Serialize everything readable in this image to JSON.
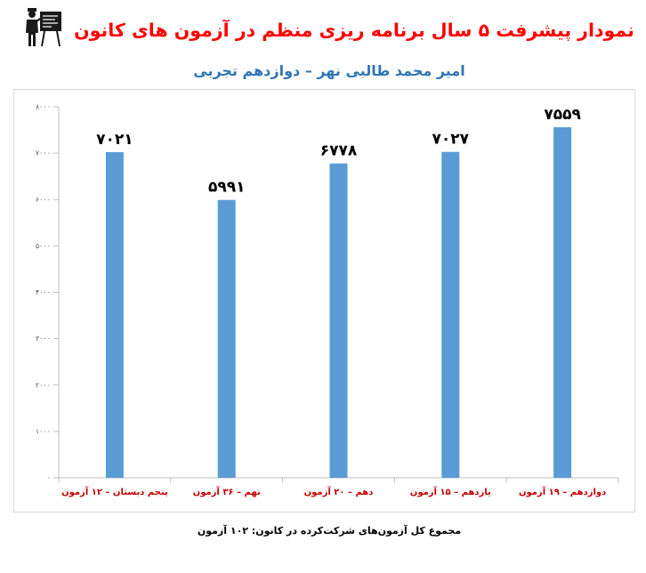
{
  "logo": {
    "icon": "teacher-at-board-logo-icon"
  },
  "colors": {
    "title": "#FF0000",
    "subtitle": "#2E75B6",
    "bar": "#5B9BD5",
    "category_label": "#C00000",
    "data_label": "#000000",
    "axis": "#BFBFBF",
    "tick_label": "#595959",
    "note": "#000000"
  },
  "chart_data": {
    "type": "bar",
    "title": "نمودار پیشرفت ۵ سال برنامه ریزی منظم در آزمون های کانون",
    "subtitle": "امیر محمد طالبی نهر – دوازدهم تجربی",
    "categories": [
      "پنجم دبستان – ۱۲ آزمون",
      "نهم – ۳۶ آزمون",
      "دهم – ۲۰ آزمون",
      "یازدهم – ۱۵ آزمون",
      "دوازدهم – ۱۹ آزمون"
    ],
    "values": [
      7021,
      5991,
      6778,
      7027,
      7559
    ],
    "value_labels": [
      "۷۰۲۱",
      "۵۹۹۱",
      "۶۷۷۸",
      "۷۰۲۷",
      "۷۵۵۹"
    ],
    "ylim": [
      0,
      8000
    ],
    "yticks": [
      0,
      1000,
      2000,
      3000,
      4000,
      5000,
      6000,
      7000,
      8000
    ],
    "ytick_labels": [
      "۰",
      "۱۰۰۰",
      "۲۰۰۰",
      "۳۰۰۰",
      "۴۰۰۰",
      "۵۰۰۰",
      "۶۰۰۰",
      "۷۰۰۰",
      "۸۰۰۰"
    ],
    "grid": false,
    "legend": "none",
    "note": "مجموع کل آزمون‌های شرکت‌کرده در کانون: ۱۰۲ آزمون"
  }
}
